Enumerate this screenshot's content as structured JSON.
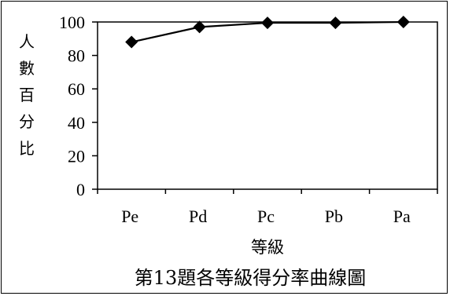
{
  "chart_data": {
    "type": "line",
    "title": "第13題各等級得分率曲線圖",
    "xlabel": "等級",
    "ylabel": "人數百分比",
    "categories": [
      "Pe",
      "Pd",
      "Pc",
      "Pb",
      "Pa"
    ],
    "series": [
      {
        "values": [
          88,
          97,
          99.5,
          99.5,
          100
        ]
      }
    ],
    "ylim": [
      0,
      100
    ],
    "yticks": [
      0,
      20,
      40,
      60,
      80,
      100
    ],
    "grid": false,
    "legend": "none",
    "line_color": "#000000",
    "marker": "diamond"
  }
}
